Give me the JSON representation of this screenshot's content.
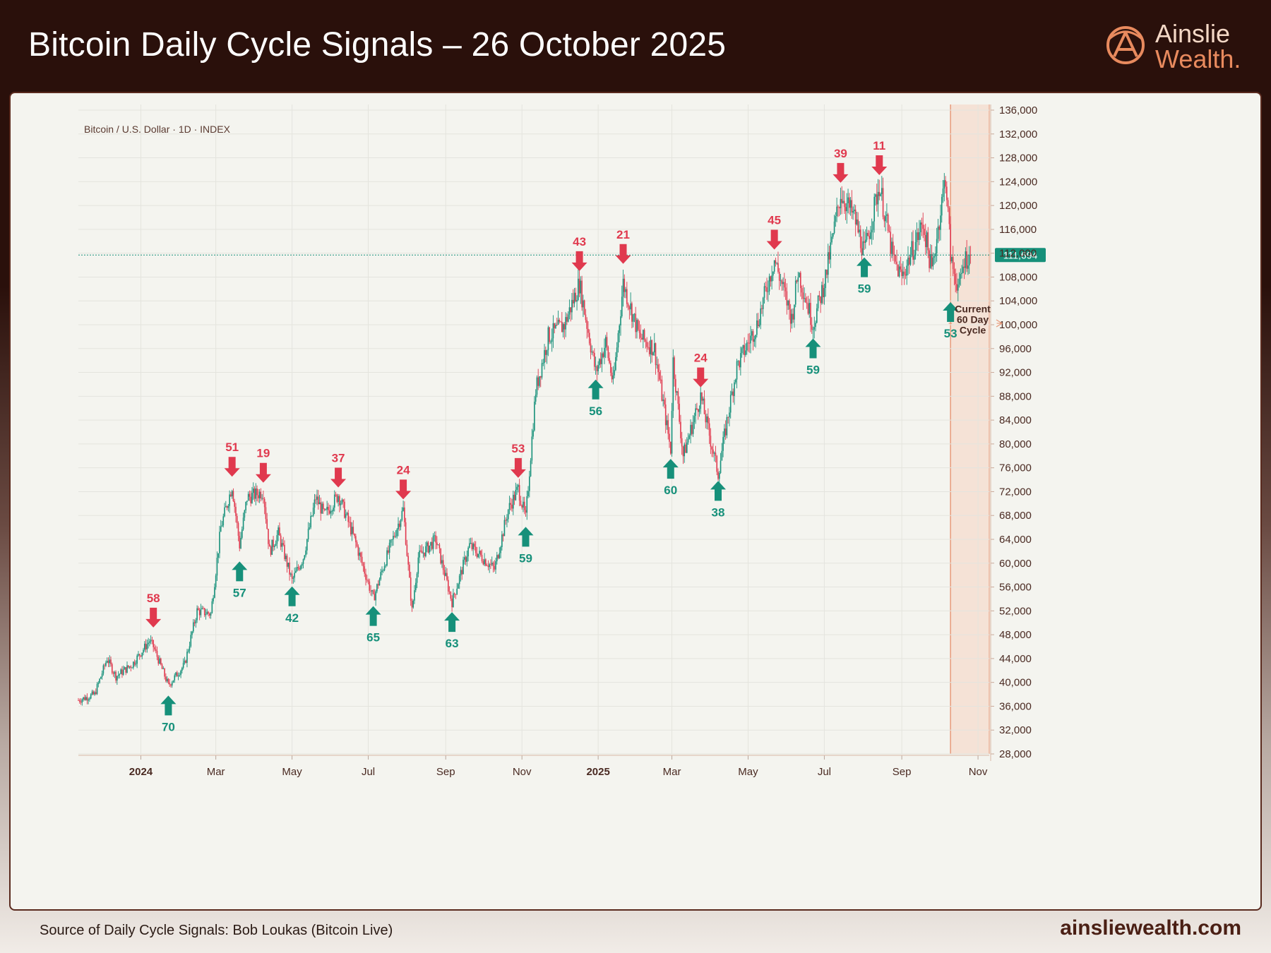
{
  "header": {
    "title": "Bitcoin Daily Cycle Signals – 26 October 2025",
    "logo_line1": "Ainslie",
    "logo_line2": "Wealth",
    "logo_dot": "."
  },
  "footer": {
    "source": "Source of Daily Cycle Signals: Bob Loukas (Bitcoin Live)",
    "site": "ainsliewealth.com"
  },
  "colors": {
    "up": "#16907a",
    "down": "#e0394e",
    "band": "#f5e2d6",
    "band_line": "#e89a7a",
    "price_tag": "#16907a",
    "brand": "#2a100b"
  },
  "chart_data": {
    "type": "candlestick",
    "instrument_label": "Bitcoin / U.S. Dollar · 1D · INDEX",
    "y_axis": {
      "min": 28000,
      "max": 136000,
      "step": 4000,
      "tick_labels": [
        "136,000",
        "132,000",
        "128,000",
        "124,000",
        "120,000",
        "116,000",
        "112,000",
        "108,000",
        "104,000",
        "100,000",
        "96,000",
        "92,000",
        "88,000",
        "84,000",
        "80,000",
        "76,000",
        "72,000",
        "68,000",
        "64,000",
        "60,000",
        "56,000",
        "52,000",
        "48,000",
        "44,000",
        "40,000",
        "36,000",
        "32,000",
        "28,000"
      ]
    },
    "x_axis": {
      "start": "2023-11-12",
      "end": "2025-11-10",
      "ticks": [
        {
          "date": "2024-01-01",
          "label": "2024",
          "bold": true
        },
        {
          "date": "2024-03-01",
          "label": "Mar",
          "bold": false
        },
        {
          "date": "2024-05-01",
          "label": "May",
          "bold": false
        },
        {
          "date": "2024-07-01",
          "label": "Jul",
          "bold": false
        },
        {
          "date": "2024-09-01",
          "label": "Sep",
          "bold": false
        },
        {
          "date": "2024-11-01",
          "label": "Nov",
          "bold": false
        },
        {
          "date": "2025-01-01",
          "label": "2025",
          "bold": true
        },
        {
          "date": "2025-03-01",
          "label": "Mar",
          "bold": false
        },
        {
          "date": "2025-05-01",
          "label": "May",
          "bold": false
        },
        {
          "date": "2025-07-01",
          "label": "Jul",
          "bold": false
        },
        {
          "date": "2025-09-01",
          "label": "Sep",
          "bold": false
        },
        {
          "date": "2025-11-01",
          "label": "Nov",
          "bold": false
        }
      ]
    },
    "grid": true,
    "last_price": 111694,
    "last_price_label": "111,694",
    "price_path": [
      [
        "2023-11-12",
        37000
      ],
      [
        "2023-11-25",
        38000
      ],
      [
        "2023-12-05",
        44000
      ],
      [
        "2023-12-12",
        41000
      ],
      [
        "2023-12-25",
        43000
      ],
      [
        "2024-01-08",
        47000
      ],
      [
        "2024-01-11",
        46000
      ],
      [
        "2024-01-23",
        39500
      ],
      [
        "2024-02-05",
        43000
      ],
      [
        "2024-02-15",
        52000
      ],
      [
        "2024-02-26",
        51500
      ],
      [
        "2024-03-05",
        66000
      ],
      [
        "2024-03-14",
        73000
      ],
      [
        "2024-03-20",
        63000
      ],
      [
        "2024-03-26",
        71000
      ],
      [
        "2024-04-08",
        72000
      ],
      [
        "2024-04-13",
        62000
      ],
      [
        "2024-04-20",
        65000
      ],
      [
        "2024-05-01",
        57000
      ],
      [
        "2024-05-10",
        61000
      ],
      [
        "2024-05-20",
        71000
      ],
      [
        "2024-05-27",
        68000
      ],
      [
        "2024-06-07",
        71500
      ],
      [
        "2024-06-20",
        64000
      ],
      [
        "2024-07-05",
        54000
      ],
      [
        "2024-07-14",
        60000
      ],
      [
        "2024-07-29",
        69000
      ],
      [
        "2024-08-05",
        52000
      ],
      [
        "2024-08-10",
        61000
      ],
      [
        "2024-08-24",
        64000
      ],
      [
        "2024-09-06",
        53500
      ],
      [
        "2024-09-20",
        63000
      ],
      [
        "2024-10-10",
        59000
      ],
      [
        "2024-10-21",
        69000
      ],
      [
        "2024-10-29",
        72500
      ],
      [
        "2024-11-04",
        67500
      ],
      [
        "2024-11-12",
        89000
      ],
      [
        "2024-11-22",
        98000
      ],
      [
        "2024-12-05",
        100000
      ],
      [
        "2024-12-17",
        107000
      ],
      [
        "2024-12-30",
        92000
      ],
      [
        "2025-01-07",
        97000
      ],
      [
        "2025-01-13",
        90000
      ],
      [
        "2025-01-21",
        107000
      ],
      [
        "2025-02-03",
        98000
      ],
      [
        "2025-02-15",
        96000
      ],
      [
        "2025-02-28",
        79000
      ],
      [
        "2025-03-02",
        94000
      ],
      [
        "2025-03-10",
        78000
      ],
      [
        "2025-03-24",
        88000
      ],
      [
        "2025-04-07",
        75000
      ],
      [
        "2025-04-15",
        85000
      ],
      [
        "2025-04-22",
        93000
      ],
      [
        "2025-05-08",
        100000
      ],
      [
        "2025-05-22",
        111000
      ],
      [
        "2025-06-05",
        101000
      ],
      [
        "2025-06-10",
        109000
      ],
      [
        "2025-06-22",
        100000
      ],
      [
        "2025-07-02",
        108000
      ],
      [
        "2025-07-14",
        122000
      ],
      [
        "2025-07-25",
        118000
      ],
      [
        "2025-08-02",
        112000
      ],
      [
        "2025-08-14",
        123500
      ],
      [
        "2025-08-25",
        111000
      ],
      [
        "2025-09-01",
        108000
      ],
      [
        "2025-09-18",
        117000
      ],
      [
        "2025-09-25",
        109000
      ],
      [
        "2025-10-06",
        125000
      ],
      [
        "2025-10-10",
        112000
      ],
      [
        "2025-10-11",
        110000
      ],
      [
        "2025-10-17",
        106000
      ],
      [
        "2025-10-21",
        111000
      ],
      [
        "2025-10-26",
        111694
      ]
    ],
    "signals": [
      {
        "type": "top",
        "date": "2024-01-11",
        "price": 48500,
        "label": "58"
      },
      {
        "type": "bottom",
        "date": "2024-01-23",
        "price": 38500,
        "label": "70"
      },
      {
        "type": "top",
        "date": "2024-03-14",
        "price": 73800,
        "label": "51"
      },
      {
        "type": "bottom",
        "date": "2024-03-20",
        "price": 61000,
        "label": "57"
      },
      {
        "type": "top",
        "date": "2024-04-08",
        "price": 72800,
        "label": "19"
      },
      {
        "type": "bottom",
        "date": "2024-05-01",
        "price": 56800,
        "label": "42"
      },
      {
        "type": "top",
        "date": "2024-06-07",
        "price": 72000,
        "label": "37"
      },
      {
        "type": "bottom",
        "date": "2024-07-05",
        "price": 53500,
        "label": "65"
      },
      {
        "type": "top",
        "date": "2024-07-29",
        "price": 70000,
        "label": "24"
      },
      {
        "type": "bottom",
        "date": "2024-09-06",
        "price": 52500,
        "label": "63"
      },
      {
        "type": "top",
        "date": "2024-10-29",
        "price": 73600,
        "label": "53"
      },
      {
        "type": "bottom",
        "date": "2024-11-04",
        "price": 66800,
        "label": "59"
      },
      {
        "type": "top",
        "date": "2024-12-17",
        "price": 108300,
        "label": "43"
      },
      {
        "type": "bottom",
        "date": "2024-12-30",
        "price": 91500,
        "label": "56"
      },
      {
        "type": "top",
        "date": "2025-01-21",
        "price": 109500,
        "label": "21"
      },
      {
        "type": "bottom",
        "date": "2025-02-28",
        "price": 78200,
        "label": "60"
      },
      {
        "type": "top",
        "date": "2025-03-24",
        "price": 88800,
        "label": "24"
      },
      {
        "type": "bottom",
        "date": "2025-04-07",
        "price": 74500,
        "label": "38"
      },
      {
        "type": "top",
        "date": "2025-05-22",
        "price": 111900,
        "label": "45"
      },
      {
        "type": "bottom",
        "date": "2025-06-22",
        "price": 98400,
        "label": "59"
      },
      {
        "type": "top",
        "date": "2025-07-14",
        "price": 123100,
        "label": "39"
      },
      {
        "type": "bottom",
        "date": "2025-08-02",
        "price": 112000,
        "label": "59"
      },
      {
        "type": "top",
        "date": "2025-08-14",
        "price": 124400,
        "label": "11"
      },
      {
        "type": "bottom",
        "date": "2025-10-10",
        "price": 104500,
        "label": "53"
      }
    ],
    "current_cycle": {
      "start": "2025-10-10",
      "end": "2025-11-10",
      "label_lines": [
        "Current",
        "60 Day",
        "Cycle"
      ]
    }
  }
}
